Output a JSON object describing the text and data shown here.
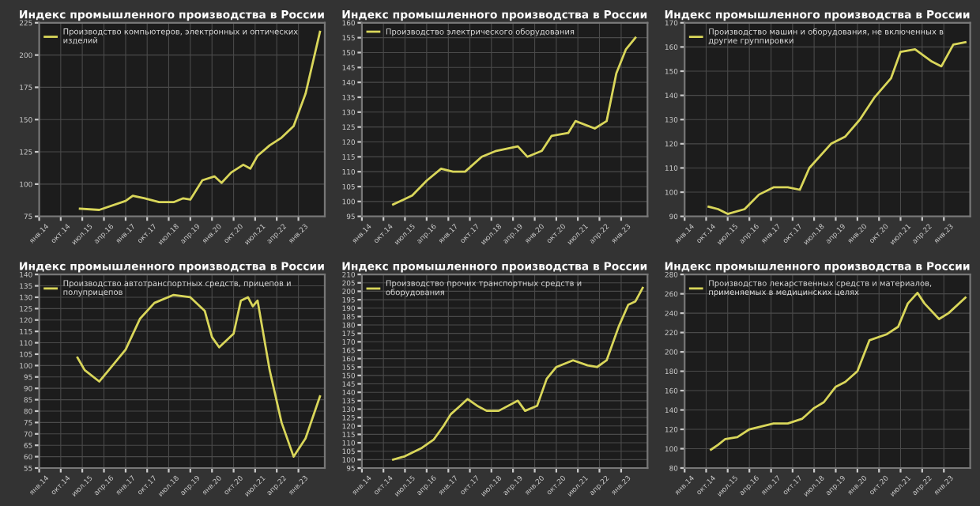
{
  "chart_data": [
    {
      "type": "line",
      "title": "Индекс промышленного производства в России",
      "legend": "top left",
      "grid": true,
      "xlim": [
        "2014-01",
        "2023-12"
      ],
      "xticks": [
        {
          "value": "2014-01",
          "label": "янв.14"
        },
        {
          "value": "2014-10",
          "label": "окт.14"
        },
        {
          "value": "2015-07",
          "label": "июл.15"
        },
        {
          "value": "2016-04",
          "label": "апр.16"
        },
        {
          "value": "2017-01",
          "label": "янв.17"
        },
        {
          "value": "2017-10",
          "label": "окт.17"
        },
        {
          "value": "2018-07",
          "label": "июл.18"
        },
        {
          "value": "2019-04",
          "label": "апр.19"
        },
        {
          "value": "2020-01",
          "label": "янв.20"
        },
        {
          "value": "2020-10",
          "label": "окт.20"
        },
        {
          "value": "2021-07",
          "label": "июл.21"
        },
        {
          "value": "2022-04",
          "label": "апр.22"
        },
        {
          "value": "2023-01",
          "label": "янв.23"
        }
      ],
      "ylim": [
        75,
        225
      ],
      "yticks": [
        75,
        100,
        125,
        150,
        175,
        200,
        225
      ],
      "x": [
        "2015-06",
        "2016-02",
        "2017-01",
        "2017-04",
        "2017-09",
        "2018-03",
        "2018-09",
        "2019-01",
        "2019-04",
        "2019-09",
        "2020-02",
        "2020-05",
        "2020-09",
        "2021-02",
        "2021-05",
        "2021-08",
        "2022-01",
        "2022-06",
        "2022-11",
        "2023-04",
        "2023-10"
      ],
      "series": [
        {
          "name": "Производство компьютеров, электронных и оптических изделий",
          "color": "#d9d65a",
          "values": [
            81,
            80,
            87,
            91,
            89,
            86,
            86,
            89,
            88,
            103,
            106,
            101,
            109,
            115,
            112,
            122,
            130,
            136,
            145,
            170,
            218
          ]
        }
      ]
    },
    {
      "type": "line",
      "title": "Индекс промышленного производства в России",
      "legend": "top left",
      "grid": true,
      "xlim": [
        "2014-01",
        "2023-12"
      ],
      "xticks": [
        {
          "value": "2014-01",
          "label": "янв.14"
        },
        {
          "value": "2014-10",
          "label": "окт.14"
        },
        {
          "value": "2015-07",
          "label": "июл.15"
        },
        {
          "value": "2016-04",
          "label": "апр.16"
        },
        {
          "value": "2017-01",
          "label": "янв.17"
        },
        {
          "value": "2017-10",
          "label": "окт.17"
        },
        {
          "value": "2018-07",
          "label": "июл.18"
        },
        {
          "value": "2019-04",
          "label": "апр.19"
        },
        {
          "value": "2020-01",
          "label": "янв.20"
        },
        {
          "value": "2020-10",
          "label": "окт.20"
        },
        {
          "value": "2021-07",
          "label": "июл.21"
        },
        {
          "value": "2022-04",
          "label": "апр.22"
        },
        {
          "value": "2023-01",
          "label": "янв.23"
        }
      ],
      "ylim": [
        95,
        160
      ],
      "yticks": [
        95,
        100,
        105,
        110,
        115,
        120,
        125,
        130,
        135,
        140,
        145,
        150,
        155,
        160
      ],
      "x": [
        "2015-02",
        "2015-10",
        "2016-04",
        "2016-10",
        "2017-03",
        "2017-08",
        "2018-03",
        "2018-09",
        "2019-06",
        "2019-10",
        "2020-04",
        "2020-08",
        "2021-03",
        "2021-06",
        "2022-02",
        "2022-07",
        "2022-11",
        "2023-03",
        "2023-07"
      ],
      "series": [
        {
          "name": "Производство электрического оборудования",
          "color": "#d9d65a",
          "values": [
            99,
            102,
            107,
            111,
            110,
            110,
            115,
            117,
            118.5,
            115,
            117,
            122,
            123,
            127,
            124.5,
            127,
            143,
            151,
            155
          ]
        }
      ]
    },
    {
      "type": "line",
      "title": "Индекс промышленного производства в России",
      "legend": "top left",
      "grid": true,
      "xlim": [
        "2014-01",
        "2023-12"
      ],
      "xticks": [
        {
          "value": "2014-01",
          "label": "янв.14"
        },
        {
          "value": "2014-10",
          "label": "окт.14"
        },
        {
          "value": "2015-07",
          "label": "июл.15"
        },
        {
          "value": "2016-04",
          "label": "апр.16"
        },
        {
          "value": "2017-01",
          "label": "янв.17"
        },
        {
          "value": "2017-10",
          "label": "окт.17"
        },
        {
          "value": "2018-07",
          "label": "июл.18"
        },
        {
          "value": "2019-04",
          "label": "апр.19"
        },
        {
          "value": "2020-01",
          "label": "янв.20"
        },
        {
          "value": "2020-10",
          "label": "окт.20"
        },
        {
          "value": "2021-07",
          "label": "июл.21"
        },
        {
          "value": "2022-04",
          "label": "апр.22"
        },
        {
          "value": "2023-01",
          "label": "янв.23"
        }
      ],
      "ylim": [
        90,
        170
      ],
      "yticks": [
        90,
        100,
        110,
        120,
        130,
        140,
        150,
        160,
        170
      ],
      "x": [
        "2014-11",
        "2015-03",
        "2015-07",
        "2016-02",
        "2016-08",
        "2017-02",
        "2017-08",
        "2018-01",
        "2018-05",
        "2019-02",
        "2019-08",
        "2020-02",
        "2020-08",
        "2021-03",
        "2021-07",
        "2022-01",
        "2022-08",
        "2022-12",
        "2023-05",
        "2023-10"
      ],
      "series": [
        {
          "name": "Производство машин и оборудования, не включенных в другие группировки",
          "color": "#d9d65a",
          "values": [
            94,
            93,
            91,
            93,
            99,
            102,
            102,
            101,
            110,
            120,
            123,
            130,
            139,
            147,
            158,
            159,
            154,
            152,
            161,
            162
          ]
        }
      ]
    },
    {
      "type": "line",
      "title": "Индекс промышленного производства в России",
      "legend": "top left",
      "grid": true,
      "xlim": [
        "2014-01",
        "2023-12"
      ],
      "xticks": [
        {
          "value": "2014-01",
          "label": "янв.14"
        },
        {
          "value": "2014-10",
          "label": "окт.14"
        },
        {
          "value": "2015-07",
          "label": "июл.15"
        },
        {
          "value": "2016-04",
          "label": "апр.16"
        },
        {
          "value": "2017-01",
          "label": "янв.17"
        },
        {
          "value": "2017-10",
          "label": "окт.17"
        },
        {
          "value": "2018-07",
          "label": "июл.18"
        },
        {
          "value": "2019-04",
          "label": "апр.19"
        },
        {
          "value": "2020-01",
          "label": "янв.20"
        },
        {
          "value": "2020-10",
          "label": "окт.20"
        },
        {
          "value": "2021-07",
          "label": "июл.21"
        },
        {
          "value": "2022-04",
          "label": "апр.22"
        },
        {
          "value": "2023-01",
          "label": "янв.23"
        }
      ],
      "ylim": [
        55,
        140
      ],
      "yticks": [
        55,
        60,
        65,
        70,
        75,
        80,
        85,
        90,
        95,
        100,
        105,
        110,
        115,
        120,
        125,
        130,
        135,
        140
      ],
      "x": [
        "2015-05",
        "2015-08",
        "2016-02",
        "2016-06",
        "2017-01",
        "2017-07",
        "2018-01",
        "2018-09",
        "2019-04",
        "2019-10",
        "2020-01",
        "2020-04",
        "2020-10",
        "2021-01",
        "2021-04",
        "2021-06",
        "2021-08",
        "2022-01",
        "2022-06",
        "2022-11",
        "2023-04",
        "2023-10"
      ],
      "series": [
        {
          "name": "Производство автотранспортных средств, прицепов и полуприцепов",
          "color": "#d9d65a",
          "values": [
            103.5,
            98,
            93,
            98,
            107,
            120.5,
            127.5,
            131,
            130,
            124,
            112.5,
            108,
            114,
            128.5,
            130,
            126,
            128.5,
            98,
            75,
            60,
            68,
            86.5
          ]
        }
      ]
    },
    {
      "type": "line",
      "title": "Индекс промышленного производства в России",
      "legend": "top left",
      "grid": true,
      "xlim": [
        "2014-01",
        "2023-12"
      ],
      "xticks": [
        {
          "value": "2014-01",
          "label": "янв.14"
        },
        {
          "value": "2014-10",
          "label": "окт.14"
        },
        {
          "value": "2015-07",
          "label": "июл.15"
        },
        {
          "value": "2016-04",
          "label": "апр.16"
        },
        {
          "value": "2017-01",
          "label": "янв.17"
        },
        {
          "value": "2017-10",
          "label": "окт.17"
        },
        {
          "value": "2018-07",
          "label": "июл.18"
        },
        {
          "value": "2019-04",
          "label": "апр.19"
        },
        {
          "value": "2020-01",
          "label": "янв.20"
        },
        {
          "value": "2020-10",
          "label": "окт.20"
        },
        {
          "value": "2021-07",
          "label": "июл.21"
        },
        {
          "value": "2022-04",
          "label": "апр.22"
        },
        {
          "value": "2023-01",
          "label": "янв.23"
        }
      ],
      "ylim": [
        95,
        210
      ],
      "yticks": [
        95,
        100,
        105,
        110,
        115,
        120,
        125,
        130,
        135,
        140,
        145,
        150,
        155,
        160,
        165,
        170,
        175,
        180,
        185,
        190,
        195,
        200,
        205,
        210
      ],
      "x": [
        "2015-02",
        "2015-07",
        "2016-02",
        "2016-07",
        "2016-11",
        "2017-02",
        "2017-06",
        "2017-09",
        "2018-01",
        "2018-05",
        "2018-10",
        "2019-06",
        "2019-09",
        "2020-02",
        "2020-06",
        "2020-10",
        "2021-05",
        "2021-11",
        "2022-03",
        "2022-07",
        "2022-12",
        "2023-04",
        "2023-07",
        "2023-10"
      ],
      "series": [
        {
          "name": "Производство прочих транспортных средств и оборудования",
          "color": "#d9d65a",
          "values": [
            100,
            102,
            107,
            112,
            120,
            127,
            132,
            136,
            132,
            129,
            129,
            135,
            129,
            132,
            148,
            155,
            159,
            156,
            155,
            159,
            179,
            192,
            194,
            202
          ]
        }
      ]
    },
    {
      "type": "line",
      "title": "Индекс промышленного производства в России",
      "legend": "top left",
      "grid": true,
      "xlim": [
        "2014-01",
        "2023-12"
      ],
      "xticks": [
        {
          "value": "2014-01",
          "label": "янв.14"
        },
        {
          "value": "2014-10",
          "label": "окт.14"
        },
        {
          "value": "2015-07",
          "label": "июл.15"
        },
        {
          "value": "2016-04",
          "label": "апр.16"
        },
        {
          "value": "2017-01",
          "label": "янв.17"
        },
        {
          "value": "2017-10",
          "label": "окт.17"
        },
        {
          "value": "2018-07",
          "label": "июл.18"
        },
        {
          "value": "2019-04",
          "label": "апр.19"
        },
        {
          "value": "2020-01",
          "label": "янв.20"
        },
        {
          "value": "2020-10",
          "label": "окт.20"
        },
        {
          "value": "2021-07",
          "label": "июл.21"
        },
        {
          "value": "2022-04",
          "label": "апр.22"
        },
        {
          "value": "2023-01",
          "label": "янв.23"
        }
      ],
      "ylim": [
        80,
        280
      ],
      "yticks": [
        80,
        100,
        120,
        140,
        160,
        180,
        200,
        220,
        240,
        260,
        280
      ],
      "x": [
        "2014-12",
        "2015-03",
        "2015-06",
        "2015-11",
        "2016-04",
        "2016-09",
        "2017-02",
        "2017-08",
        "2018-02",
        "2018-07",
        "2018-11",
        "2019-04",
        "2019-08",
        "2020-01",
        "2020-06",
        "2021-01",
        "2021-06",
        "2021-10",
        "2022-02",
        "2022-05",
        "2022-11",
        "2023-03",
        "2023-10"
      ],
      "series": [
        {
          "name": "Производство лекарственных средств и материалов, применяемых в медицинских целях",
          "color": "#d9d65a",
          "values": [
            99,
            104,
            110,
            112,
            120,
            123,
            126,
            126,
            131,
            142,
            148,
            164,
            169,
            180,
            212,
            218,
            226,
            250,
            261,
            250,
            234,
            240,
            256
          ]
        }
      ]
    }
  ]
}
